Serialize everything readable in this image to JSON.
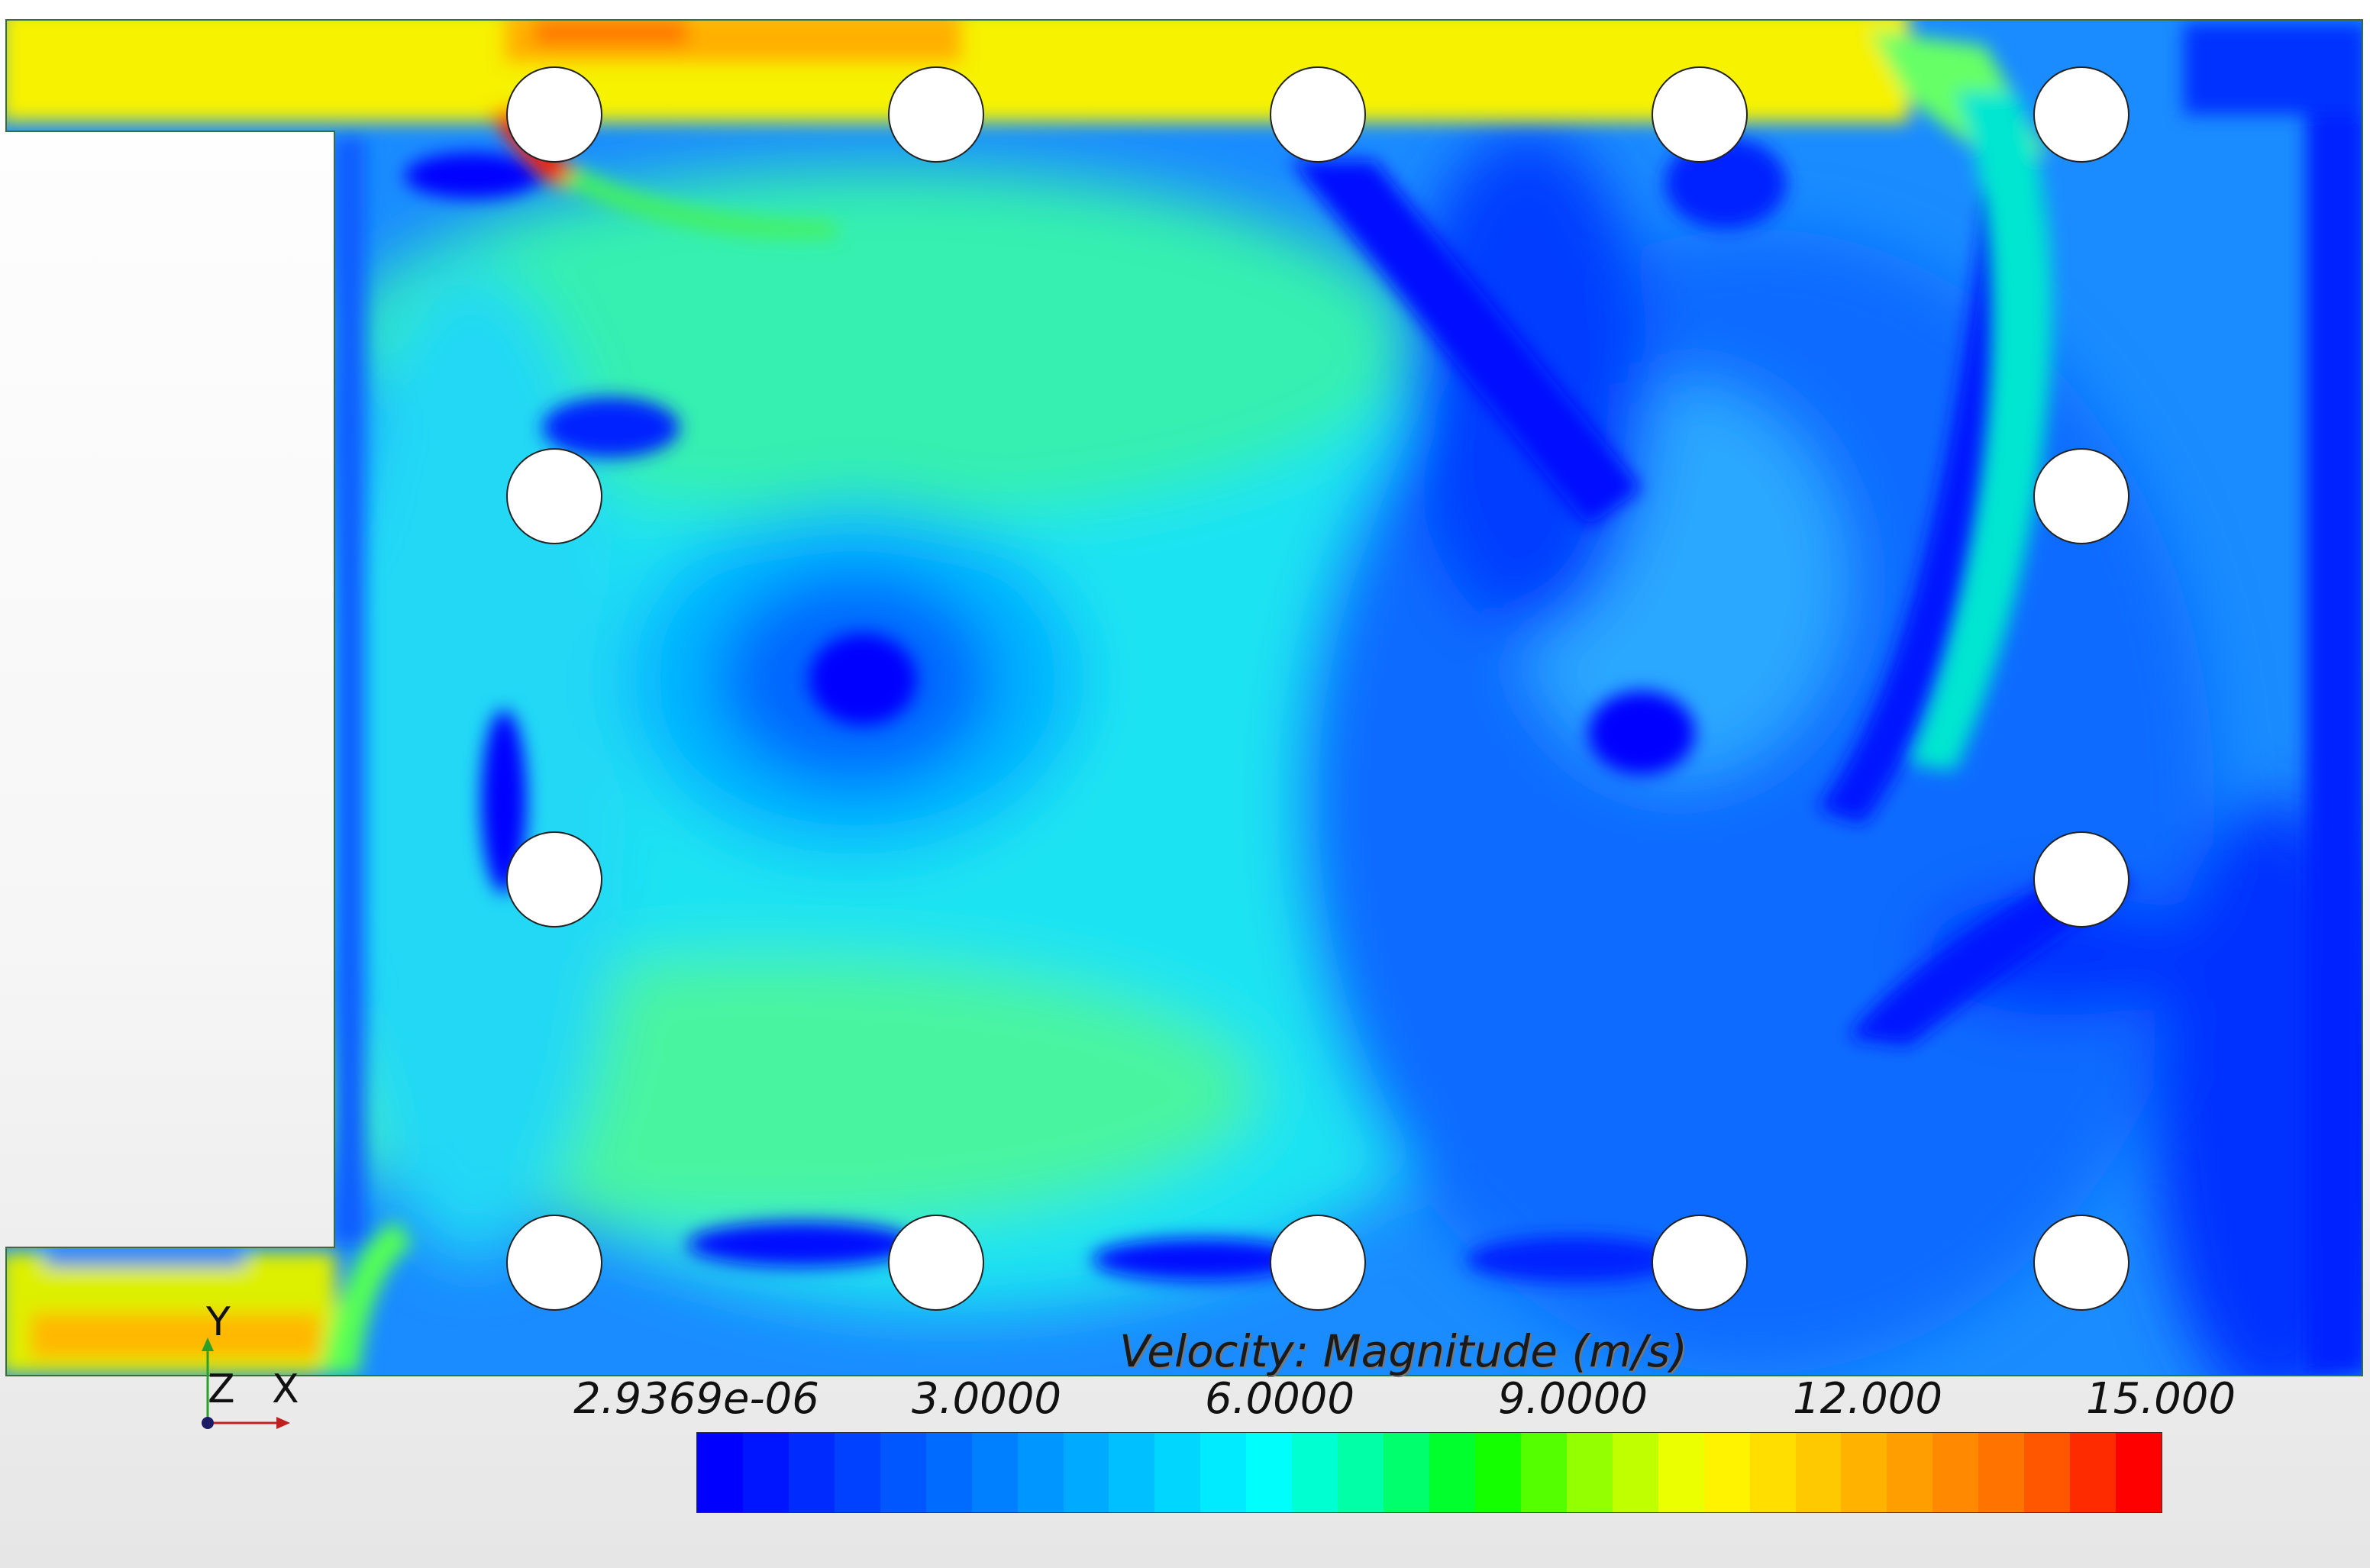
{
  "chart_data": {
    "type": "heatmap",
    "title": "",
    "colorbar": {
      "title": "Velocity: Magnitude (m/s)",
      "tick_labels": [
        "2.9369e-06",
        "3.0000",
        "6.0000",
        "9.0000",
        "12.000",
        "15.000"
      ],
      "min": 2.9369e-06,
      "max": 15.0,
      "color_steps": 32,
      "colors": [
        "#0000ff",
        "#0033ff",
        "#0066ff",
        "#0099ff",
        "#00ccff",
        "#00ffff",
        "#00ff99",
        "#00ff00",
        "#99ff00",
        "#ffff00",
        "#ffcc00",
        "#ff9900",
        "#ff6600",
        "#ff0000"
      ]
    },
    "field_regions": [
      {
        "region": "inlet-top",
        "speed": 12.5
      },
      {
        "region": "inlet-bottom",
        "speed": 12.0
      },
      {
        "region": "main-vortex-rim",
        "speed": 6.5
      },
      {
        "region": "vortex-core",
        "speed": 0.3
      },
      {
        "region": "right-recirculation",
        "speed": 2.0
      },
      {
        "region": "wake-zones",
        "speed": 0.0
      }
    ],
    "obstacles": 14
  },
  "axes_triad": {
    "y_label": "Y",
    "z_label": "Z",
    "x_label": "X"
  }
}
